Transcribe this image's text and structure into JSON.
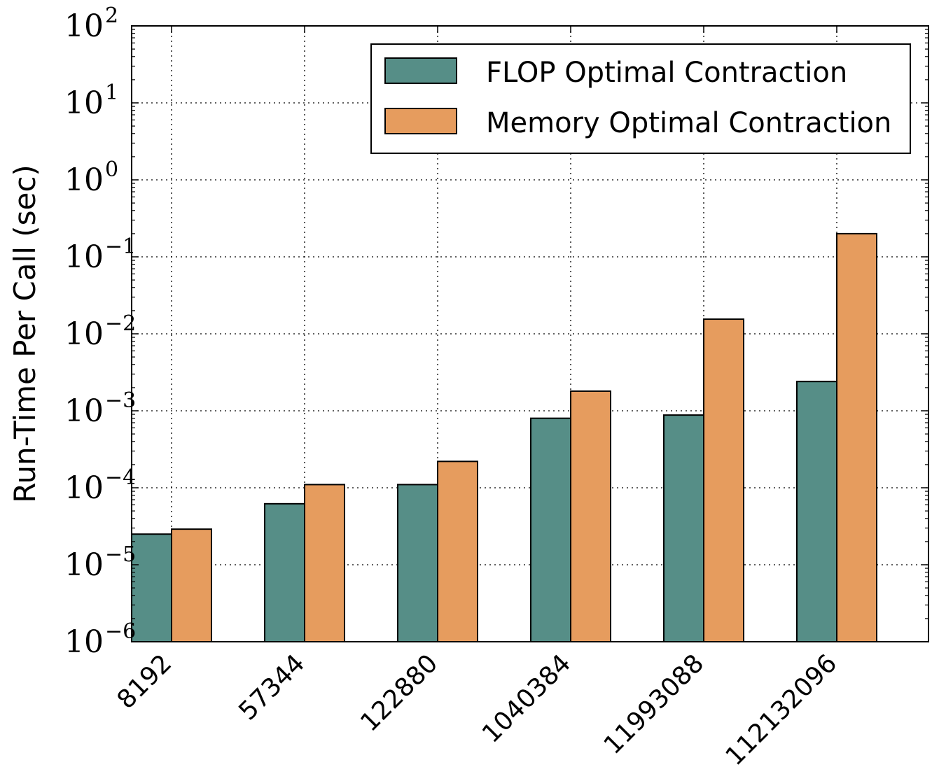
{
  "chart_data": {
    "type": "bar",
    "title": "",
    "xlabel": "",
    "ylabel": "Run-Time Per Call (sec)",
    "yscale": "log",
    "ylim": [
      1e-06,
      100
    ],
    "grid": true,
    "legend_position": "top-right",
    "categories": [
      "8192",
      "57344",
      "122880",
      "1040384",
      "11993088",
      "112132096"
    ],
    "series": [
      {
        "name": "FLOP Optimal Contraction",
        "color": "#568e87",
        "values": [
          2.5e-05,
          6.2e-05,
          0.00011,
          0.0008,
          0.00088,
          0.0024
        ]
      },
      {
        "name": "Memory Optimal Contraction",
        "color": "#e69c5e",
        "values": [
          2.9e-05,
          0.00011,
          0.00022,
          0.0018,
          0.0155,
          0.2
        ]
      }
    ],
    "y_ticks": [
      {
        "base": "10",
        "exp": "−6",
        "value": 1e-06
      },
      {
        "base": "10",
        "exp": "−5",
        "value": 1e-05
      },
      {
        "base": "10",
        "exp": "−4",
        "value": 0.0001
      },
      {
        "base": "10",
        "exp": "−3",
        "value": 0.001
      },
      {
        "base": "10",
        "exp": "−2",
        "value": 0.01
      },
      {
        "base": "10",
        "exp": "−1",
        "value": 0.1
      },
      {
        "base": "10",
        "exp": "0",
        "value": 1
      },
      {
        "base": "10",
        "exp": "1",
        "value": 10
      },
      {
        "base": "10",
        "exp": "2",
        "value": 100
      }
    ]
  }
}
